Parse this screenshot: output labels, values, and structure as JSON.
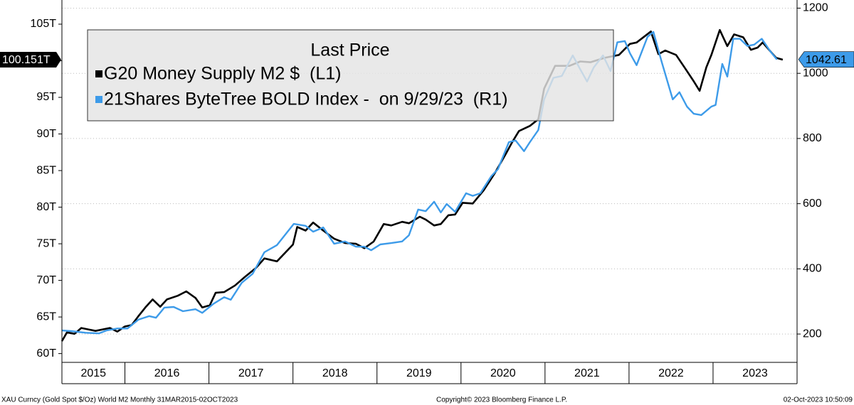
{
  "chart_data": {
    "type": "line",
    "legend_title": "Last Price",
    "xlim": [
      2015.25,
      2024
    ],
    "xticks": [
      2016,
      2017,
      2018,
      2019,
      2020,
      2021,
      2022,
      2023
    ],
    "years": [
      2015,
      2016,
      2017,
      2018,
      2019,
      2020,
      2021,
      2022,
      2023
    ],
    "ylim": [
      58.8,
      108.3
    ],
    "yticks": [
      {
        "value": 60,
        "label": "60T"
      },
      {
        "value": 65,
        "label": "65T"
      },
      {
        "value": 70,
        "label": "70T"
      },
      {
        "value": 75,
        "label": "75T"
      },
      {
        "value": 80,
        "label": "80T"
      },
      {
        "value": 85,
        "label": "85T"
      },
      {
        "value": 90,
        "label": "90T"
      },
      {
        "value": 95,
        "label": "95T"
      },
      {
        "value": 100,
        "label": "100T"
      },
      {
        "value": 105,
        "label": "105T"
      }
    ],
    "y2lim": [
      113,
      1225
    ],
    "y2ticks": [
      200,
      400,
      600,
      800,
      1000,
      1200
    ],
    "grid": true,
    "series": [
      {
        "name": "G20 Money Supply M2 $  (L1)",
        "color": "#000000",
        "axis": "y",
        "last_label": "100.151T",
        "x": [
          2015.25,
          2015.31,
          2015.4,
          2015.48,
          2015.65,
          2015.82,
          2015.91,
          2016.0,
          2016.08,
          2016.16,
          2016.25,
          2016.33,
          2016.42,
          2016.5,
          2016.63,
          2016.73,
          2016.84,
          2016.92,
          2017.01,
          2017.08,
          2017.18,
          2017.31,
          2017.43,
          2017.56,
          2017.66,
          2017.81,
          2018.0,
          2018.05,
          2018.15,
          2018.24,
          2018.36,
          2018.49,
          2018.62,
          2018.75,
          2018.85,
          2018.96,
          2019.08,
          2019.17,
          2019.3,
          2019.38,
          2019.51,
          2019.58,
          2019.68,
          2019.76,
          2019.85,
          2019.93,
          2020.02,
          2020.14,
          2020.27,
          2020.4,
          2020.53,
          2020.61,
          2020.69,
          2020.82,
          2020.92,
          2020.99,
          2021.12,
          2021.29,
          2021.42,
          2021.54,
          2021.71,
          2021.88,
          2022.01,
          2022.09,
          2022.26,
          2022.35,
          2022.43,
          2022.56,
          2022.66,
          2022.77,
          2022.84,
          2022.92,
          2022.98,
          2023.08,
          2023.17,
          2023.25,
          2023.36,
          2023.45,
          2023.53,
          2023.59,
          2023.75,
          2023.83
        ],
        "values": [
          61.7,
          62.9,
          62.7,
          63.5,
          63.1,
          63.5,
          63.0,
          63.7,
          63.9,
          65.1,
          66.4,
          67.4,
          66.4,
          67.4,
          67.9,
          68.5,
          67.6,
          66.3,
          66.6,
          68.3,
          68.4,
          69.3,
          70.5,
          71.7,
          73.0,
          72.6,
          74.9,
          77.3,
          76.8,
          77.9,
          76.8,
          75.7,
          75.1,
          75.0,
          74.4,
          75.3,
          77.7,
          77.5,
          78.0,
          77.8,
          78.7,
          78.3,
          77.5,
          77.7,
          78.9,
          79.0,
          80.6,
          80.5,
          82.3,
          84.6,
          87.2,
          88.9,
          90.4,
          91.1,
          92.0,
          96.2,
          99.3,
          99.3,
          99.9,
          99.8,
          100.4,
          100.8,
          102.3,
          102.5,
          104.0,
          100.9,
          101.4,
          100.8,
          99.1,
          97.2,
          95.9,
          99.1,
          100.8,
          104.2,
          102.0,
          103.6,
          103.2,
          101.5,
          101.8,
          102.5,
          100.4,
          100.151
        ]
      },
      {
        "name": "21Shares ByteTree BOLD Index -  on 9/29/23  (R1)",
        "color": "#3d9be9",
        "axis": "y2",
        "last_label": "1042.61",
        "x": [
          2015.25,
          2015.36,
          2015.53,
          2015.69,
          2015.78,
          2015.91,
          2016.03,
          2016.16,
          2016.29,
          2016.37,
          2016.47,
          2016.58,
          2016.69,
          2016.84,
          2016.92,
          2017.05,
          2017.18,
          2017.26,
          2017.39,
          2017.52,
          2017.66,
          2017.81,
          2018.01,
          2018.15,
          2018.24,
          2018.36,
          2018.49,
          2018.62,
          2018.75,
          2018.85,
          2018.93,
          2019.04,
          2019.17,
          2019.3,
          2019.38,
          2019.49,
          2019.58,
          2019.68,
          2019.76,
          2019.83,
          2019.93,
          2020.06,
          2020.14,
          2020.23,
          2020.36,
          2020.44,
          2020.57,
          2020.65,
          2020.75,
          2020.82,
          2020.92,
          2020.99,
          2021.1,
          2021.2,
          2021.33,
          2021.42,
          2021.5,
          2021.58,
          2021.69,
          2021.78,
          2021.86,
          2021.95,
          2022.01,
          2022.09,
          2022.22,
          2022.29,
          2022.39,
          2022.52,
          2022.6,
          2022.69,
          2022.77,
          2022.86,
          2022.98,
          2023.03,
          2023.11,
          2023.17,
          2023.24,
          2023.32,
          2023.41,
          2023.49,
          2023.58,
          2023.68,
          2023.76
        ],
        "values": [
          211,
          209,
          204,
          202,
          211,
          217,
          217,
          244,
          255,
          250,
          281,
          283,
          270,
          276,
          265,
          292,
          313,
          305,
          357,
          385,
          451,
          473,
          538,
          532,
          514,
          527,
          477,
          484,
          468,
          468,
          457,
          475,
          479,
          484,
          503,
          582,
          577,
          606,
          573,
          599,
          575,
          632,
          624,
          632,
          684,
          706,
          789,
          794,
          761,
          789,
          826,
          920,
          986,
          992,
          1055,
          1012,
          975,
          1018,
          1055,
          1007,
          1095,
          1099,
          1062,
          1025,
          1112,
          1127,
          1034,
          920,
          942,
          898,
          876,
          872,
          898,
          903,
          1029,
          990,
          1106,
          1106,
          1084,
          1088,
          1106,
          1068,
          1042.61
        ]
      }
    ],
    "footer_left": "XAU Curncy (Gold Spot  $/Oz) World M2  Monthly 31MAR2015-02OCT2023",
    "footer_center": "Copyright© 2023 Bloomberg Finance L.P.",
    "footer_right": "02-Oct-2023 10:50:09"
  }
}
